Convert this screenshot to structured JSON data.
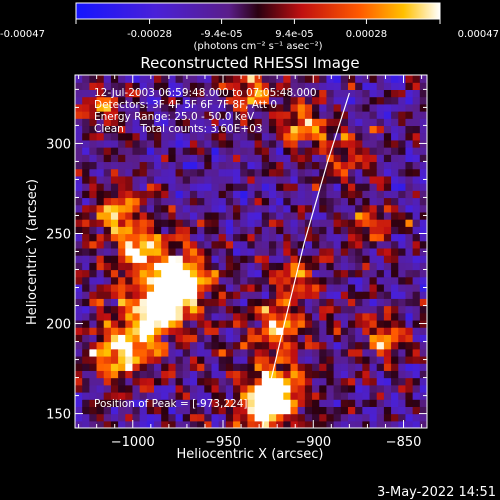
{
  "colorbar": {
    "tick_labels": [
      "-0.00047",
      "-0.00028",
      "-9.4e-05",
      "9.4e-05",
      "0.00028",
      "0.00047"
    ],
    "tick_values": [
      -0.00047,
      -0.00028,
      -9.4e-05,
      9.4e-05,
      0.00028,
      0.00047
    ],
    "range": [
      -0.00047,
      0.00047
    ],
    "unit_label": "(photons cm⁻² s⁻¹ asec⁻²)",
    "colormap": "blue-purple-red-orange-yellow-white"
  },
  "chart_data": {
    "type": "heatmap",
    "title": "Reconstructed RHESSI Image",
    "xlabel": "Heliocentric X (arcsec)",
    "ylabel": "Heliocentric Y (arcsec)",
    "xlim": [
      -1032,
      -837
    ],
    "ylim": [
      142,
      338
    ],
    "x_ticks": [
      -1000,
      -950,
      -900,
      -850
    ],
    "x_tick_labels": [
      "−1000",
      "−950",
      "−900",
      "−850"
    ],
    "y_ticks": [
      150,
      200,
      250,
      300
    ],
    "y_tick_labels": [
      "150",
      "200",
      "250",
      "300"
    ],
    "annotations": [
      "12-Jul-2003 06:59:48.000 to 07:05:48.000",
      "Detectors: 3F 4F 5F 6F 7F 8F, Att 0",
      "Energy Range: 25.0 - 50.0 keV",
      "Clean     Total counts: 3.60E+03"
    ],
    "peak_label": "Position of Peak = [-973,224]",
    "peak_position": [
      -973,
      224
    ],
    "limb_curve": [
      [
        -928,
        142
      ],
      [
        -925,
        162
      ],
      [
        -916,
        200
      ],
      [
        -905,
        245
      ],
      [
        -892,
        290
      ],
      [
        -880,
        328
      ]
    ],
    "hot_spots": [
      {
        "x": -975,
        "y": 224,
        "amp": 1.0
      },
      {
        "x": -985,
        "y": 208,
        "amp": 0.8
      },
      {
        "x": -997,
        "y": 242,
        "amp": 0.55
      },
      {
        "x": -1010,
        "y": 262,
        "amp": 0.45
      },
      {
        "x": -1000,
        "y": 190,
        "amp": 0.5
      },
      {
        "x": -1012,
        "y": 180,
        "amp": 0.45
      },
      {
        "x": -920,
        "y": 162,
        "amp": 0.75
      },
      {
        "x": -928,
        "y": 152,
        "amp": 0.6
      },
      {
        "x": -918,
        "y": 198,
        "amp": 0.5
      },
      {
        "x": -910,
        "y": 226,
        "amp": 0.4
      },
      {
        "x": -905,
        "y": 310,
        "amp": 0.5
      },
      {
        "x": -935,
        "y": 330,
        "amp": 0.45
      },
      {
        "x": -860,
        "y": 192,
        "amp": 0.45
      },
      {
        "x": -868,
        "y": 255,
        "amp": 0.35
      },
      {
        "x": -1015,
        "y": 320,
        "amp": 0.4
      },
      {
        "x": -880,
        "y": 292,
        "amp": 0.3
      }
    ]
  },
  "footer": {
    "timestamp": "3-May-2022 14:51"
  }
}
